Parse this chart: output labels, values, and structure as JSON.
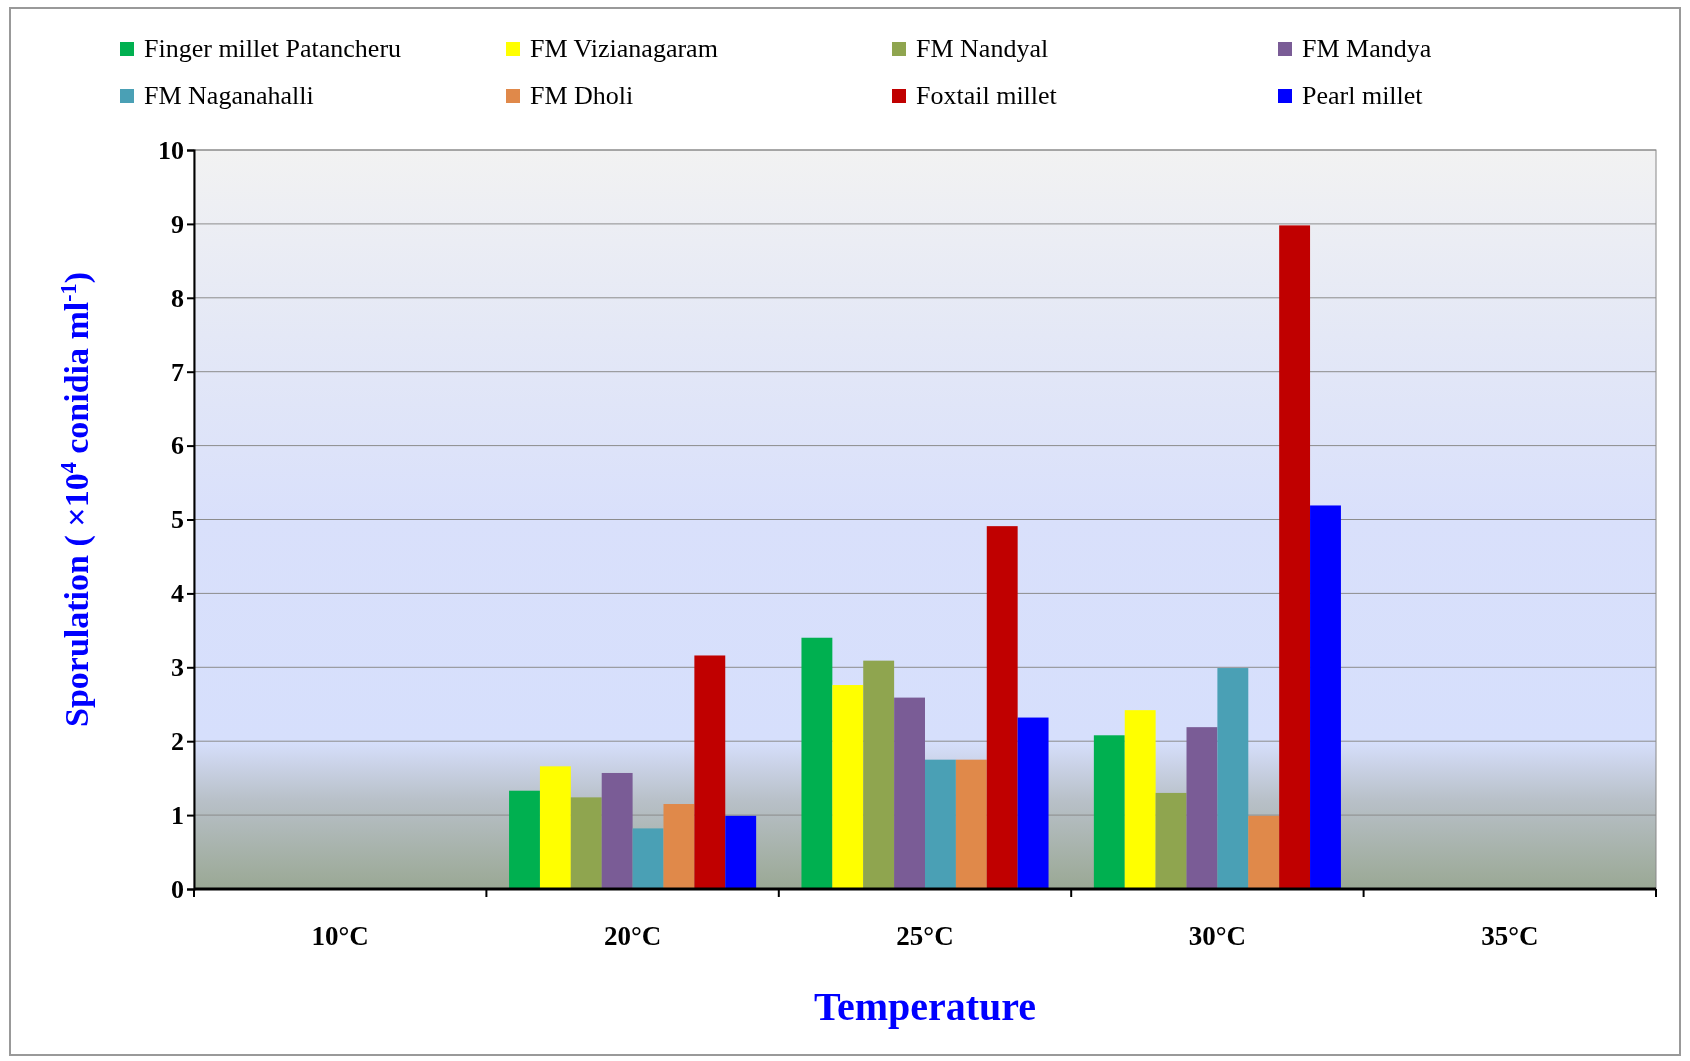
{
  "chart_data": {
    "type": "bar",
    "xlabel": "Temperature",
    "ylabel": "Sporulation ( ×10$^{4}$ conidia ml$^{-1}$)",
    "categories": [
      "10°C",
      "20°C",
      "25°C",
      "30°C",
      "35°C"
    ],
    "ylim": [
      0,
      10
    ],
    "yticks": [
      0,
      1,
      2,
      3,
      4,
      5,
      6,
      7,
      8,
      9,
      10
    ],
    "grid": "y",
    "legend": "top",
    "series": [
      {
        "name": "Finger millet Patancheru",
        "color": "#00b050",
        "values": [
          null,
          1.33,
          3.4,
          2.08,
          null
        ]
      },
      {
        "name": "FM Vizianagaram",
        "color": "#ffff00",
        "values": [
          null,
          1.66,
          2.76,
          2.42,
          null
        ]
      },
      {
        "name": "FM Nandyal",
        "color": "#8fa54f",
        "values": [
          null,
          1.24,
          3.09,
          1.3,
          null
        ]
      },
      {
        "name": "FM Mandya",
        "color": "#7a5c96",
        "values": [
          null,
          1.57,
          2.59,
          2.19,
          null
        ]
      },
      {
        "name": "FM Naganahalli",
        "color": "#4aa0b5",
        "values": [
          null,
          0.82,
          1.75,
          2.99,
          null
        ]
      },
      {
        "name": "FM Dholi",
        "color": "#e0894a",
        "values": [
          null,
          1.15,
          1.75,
          0.99,
          null
        ]
      },
      {
        "name": "Foxtail millet",
        "color": "#c00000",
        "values": [
          null,
          3.16,
          4.91,
          8.98,
          null
        ]
      },
      {
        "name": "Pearl millet",
        "color": "#0000ff",
        "values": [
          null,
          0.99,
          2.32,
          5.19,
          null
        ]
      }
    ]
  }
}
